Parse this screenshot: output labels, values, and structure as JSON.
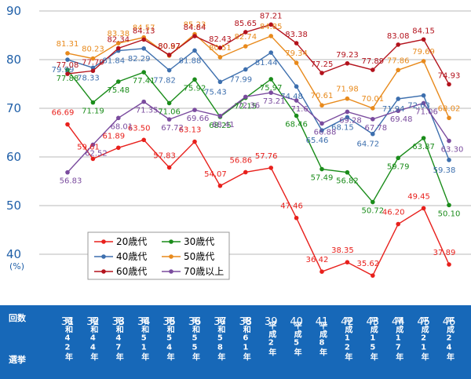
{
  "chart_data": {
    "type": "line",
    "ylim": [
      35,
      90
    ],
    "y_ticks": [
      40,
      50,
      60,
      70,
      80,
      90
    ],
    "y_unit": "(%)",
    "row_label_count": "回数",
    "row_label_year": "選挙",
    "x": [
      {
        "num": "31",
        "era": "昭和42年"
      },
      {
        "num": "32",
        "era": "昭和44年"
      },
      {
        "num": "33",
        "era": "昭和47年"
      },
      {
        "num": "34",
        "era": "昭和51年"
      },
      {
        "num": "35",
        "era": "昭和54年"
      },
      {
        "num": "36",
        "era": "昭和55年"
      },
      {
        "num": "37",
        "era": "昭和58年"
      },
      {
        "num": "38",
        "era": "昭和61年"
      },
      {
        "num": "39",
        "era": "平成2年"
      },
      {
        "num": "40",
        "era": "平成5年"
      },
      {
        "num": "41",
        "era": "平成8年"
      },
      {
        "num": "42",
        "era": "平成12年"
      },
      {
        "num": "43",
        "era": "平成15年"
      },
      {
        "num": "44",
        "era": "平成17年"
      },
      {
        "num": "45",
        "era": "平成21年"
      },
      {
        "num": "46",
        "era": "平成24年"
      }
    ],
    "series": [
      {
        "name": "20歳代",
        "color": "#e8201c",
        "values": [
          66.69,
          59.61,
          61.89,
          63.5,
          57.83,
          63.13,
          54.07,
          56.86,
          57.76,
          47.46,
          36.42,
          38.35,
          35.62,
          46.2,
          49.45,
          37.89
        ],
        "labels": [
          "66.69",
          "59.61",
          "61.89",
          "63.50",
          "57.83",
          "63.13",
          "54.07",
          "56.86",
          "57.76",
          "47.46",
          "36.42",
          "38.35",
          "35.62",
          "46.20",
          "49.45",
          "37.89"
        ]
      },
      {
        "name": "30歳代",
        "color": "#1a8c1a",
        "values": [
          77.88,
          71.19,
          75.48,
          77.41,
          71.06,
          75.92,
          68.25,
          72.15,
          75.97,
          68.46,
          57.49,
          56.82,
          50.72,
          59.79,
          63.87,
          50.1
        ],
        "labels": [
          "77.88",
          "71.19",
          "75.48",
          "77.41",
          "71.06",
          "75.92",
          "68.25",
          "72.15",
          "75.97",
          "68.46",
          "57.49",
          "56.82",
          "50.72",
          "59.79",
          "63.87",
          "50.10"
        ]
      },
      {
        "name": "40歳代",
        "color": "#3d6fae",
        "values": [
          79.99,
          78.33,
          81.84,
          82.29,
          77.82,
          81.88,
          75.43,
          77.99,
          81.44,
          74.48,
          65.46,
          68.15,
          64.72,
          71.94,
          72.63,
          59.38
        ],
        "labels": [
          "79.99",
          "78.33",
          "81.84",
          "82.29",
          "77.82",
          "81.88",
          "75.43",
          "77.99",
          "81.44",
          "74.48",
          "65.46",
          "68.15",
          "64.72",
          "71.94",
          "72.63",
          "59.38"
        ]
      },
      {
        "name": "50歳代",
        "color": "#e88a1c",
        "values": [
          81.31,
          80.23,
          83.38,
          84.57,
          80.82,
          85.23,
          80.51,
          82.74,
          84.85,
          79.34,
          70.61,
          71.98,
          70.01,
          77.86,
          79.69,
          68.02
        ],
        "labels": [
          "81.31",
          "80.23",
          "83.38",
          "84.57",
          "80.82",
          "85.23",
          "80.51",
          "82.74",
          "84.85",
          "79.34",
          "70.61",
          "71.98",
          "70.01",
          "77.86",
          "79.69",
          "68.02"
        ]
      },
      {
        "name": "60歳代",
        "color": "#b3121c",
        "values": [
          77.08,
          77.7,
          82.34,
          84.13,
          80.97,
          84.84,
          82.43,
          85.65,
          87.21,
          83.38,
          77.25,
          79.23,
          77.89,
          83.08,
          84.15,
          74.93
        ],
        "labels": [
          "77.08",
          "77.70",
          "82.34",
          "84.13",
          "80.97",
          "84.84",
          "82.43",
          "85.65",
          "87.21",
          "83.38",
          "77.25",
          "79.23",
          "77.89",
          "83.08",
          "84.15",
          "74.93"
        ]
      },
      {
        "name": "70歳以上",
        "color": "#7a4b9e",
        "values": [
          56.83,
          62.52,
          68.01,
          71.35,
          67.72,
          69.66,
          68.41,
          72.36,
          73.21,
          71.61,
          66.88,
          69.28,
          67.78,
          69.48,
          71.06,
          63.3
        ],
        "labels": [
          "56.83",
          "62.52",
          "68.01",
          "71.35",
          "67.72",
          "69.66",
          "68.41",
          "72.36",
          "73.21",
          "71.6",
          "66.88",
          "69.28",
          "67.78",
          "69.48",
          "71.06",
          "63.30"
        ]
      }
    ]
  }
}
